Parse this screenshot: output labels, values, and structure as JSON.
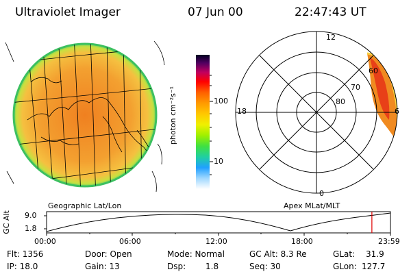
{
  "header": {
    "instrument": "Ultraviolet Imager",
    "date": "07 Jun 00",
    "time": "22:47:43 UT"
  },
  "panels": {
    "left_label": "Geographic Lat/Lon",
    "right_label": "Apex MLat/MLT"
  },
  "colorbar": {
    "unit_label": "photon cm⁻²s⁻¹",
    "ticks": [
      "100",
      "10"
    ]
  },
  "polar_plot": {
    "mlt_labels": [
      "12",
      "18",
      "6",
      "0"
    ],
    "lat_labels": [
      "60",
      "70",
      "80"
    ]
  },
  "timeline": {
    "ylabel": "GC Alt",
    "y_ticks": [
      "9.0",
      "1.8"
    ],
    "x_ticks": [
      "00:00",
      "06:00",
      "12:00",
      "18:00",
      "23:59"
    ],
    "current_time_fraction": 0.946
  },
  "info": {
    "flt": "Flt: 1356",
    "ip": "IP: 18.0",
    "door": "Door: Open",
    "gain": "Gain: 13",
    "mode": "Mode: Normal",
    "dsp_label": "Dsp:",
    "dsp_value": "1.8",
    "gcalt": "GC Alt: 8.3 Re",
    "seq": "Seq: 30",
    "glat_label": "GLat:",
    "glat_value": "31.9",
    "glon_label": "GLon:",
    "glon_value": "127.7"
  }
}
